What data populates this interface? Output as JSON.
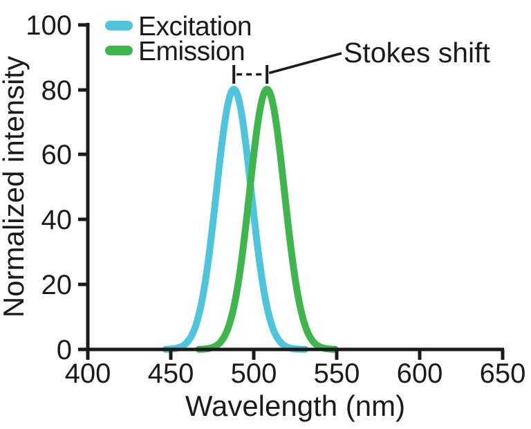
{
  "chart_data": {
    "type": "line",
    "title": "",
    "xlabel": "Wavelength (nm)",
    "ylabel": "Normalized intensity",
    "xlim": [
      400,
      650
    ],
    "ylim": [
      0,
      100
    ],
    "x_ticks": [
      400,
      450,
      500,
      550,
      600,
      650
    ],
    "y_ticks": [
      0,
      20,
      40,
      60,
      80,
      100
    ],
    "grid": false,
    "legend_position": "top-left-inside",
    "axis_color": "#1b1b1b",
    "series": [
      {
        "name": "Excitation",
        "color": "#4ec4dd",
        "shape": "gaussian",
        "peak_nm": 488,
        "peak_intensity": 80,
        "sigma_nm": 10.5,
        "draw_range_nm": [
          447,
          531
        ],
        "sample_points": {
          "x": [
            445,
            450,
            455,
            460,
            465,
            470,
            475,
            480,
            485,
            488,
            490,
            495,
            500,
            505,
            510,
            515,
            520,
            525,
            530
          ],
          "y": [
            0.0,
            0.1,
            0.6,
            2.3,
            7.3,
            18.4,
            37.2,
            59.8,
            76.8,
            80.0,
            78.6,
            64.1,
            41.6,
            21.6,
            8.9,
            2.9,
            0.8,
            0.2,
            0.0
          ]
        }
      },
      {
        "name": "Emission",
        "color": "#3eb64c",
        "shape": "gaussian",
        "peak_nm": 508,
        "peak_intensity": 80,
        "sigma_nm": 10.5,
        "draw_range_nm": [
          467,
          549
        ],
        "sample_points": {
          "x": [
            465,
            470,
            475,
            480,
            485,
            490,
            495,
            500,
            505,
            508,
            510,
            515,
            520,
            525,
            530,
            535,
            540,
            545,
            550
          ],
          "y": [
            0.0,
            0.1,
            0.6,
            2.3,
            7.3,
            18.4,
            37.2,
            59.8,
            76.8,
            80.0,
            78.6,
            64.1,
            41.6,
            21.6,
            8.9,
            2.9,
            0.8,
            0.2,
            0.0
          ]
        }
      }
    ],
    "annotation": {
      "label": "Stokes shift",
      "between_nm": [
        488,
        508
      ],
      "shift_nm": 20,
      "style": "dashed-bracket-with-leader-line"
    }
  }
}
